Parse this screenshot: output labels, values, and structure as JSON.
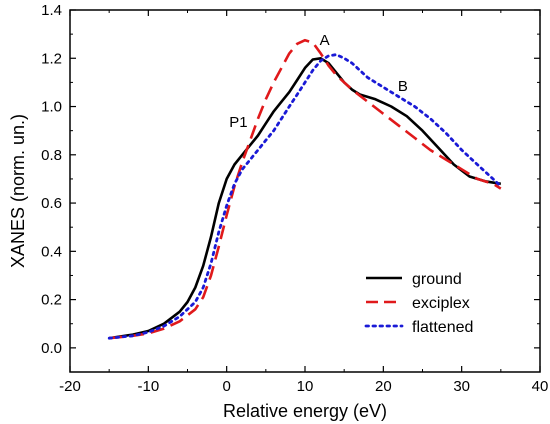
{
  "chart_data": {
    "type": "line",
    "xlabel": "Relative energy (eV)",
    "ylabel": "XANES (norm. un.)",
    "xlim": [
      -20,
      40
    ],
    "ylim": [
      -0.1,
      1.4
    ],
    "x_ticks": [
      -20,
      -10,
      0,
      10,
      20,
      30,
      40
    ],
    "y_ticks": [
      0.0,
      0.2,
      0.4,
      0.6,
      0.8,
      1.0,
      1.2,
      1.4
    ],
    "x_tick_labels": [
      "-20",
      "-10",
      "0",
      "10",
      "20",
      "30",
      "40"
    ],
    "y_tick_labels": [
      "0.0",
      "0.2",
      "0.4",
      "0.6",
      "0.8",
      "1.0",
      "1.2",
      "1.4"
    ],
    "grid": false,
    "legend_position": "bottom-right",
    "annotations": [
      {
        "text": "A",
        "x": 12.5,
        "y": 1.255
      },
      {
        "text": "B",
        "x": 22.5,
        "y": 1.065
      },
      {
        "text": "P1",
        "x": 1.5,
        "y": 0.915
      }
    ],
    "series": [
      {
        "name": "ground",
        "color": "#000000",
        "style": "solid",
        "points": [
          [
            -15,
            0.04
          ],
          [
            -12,
            0.055
          ],
          [
            -10,
            0.07
          ],
          [
            -8,
            0.1
          ],
          [
            -6,
            0.15
          ],
          [
            -5,
            0.19
          ],
          [
            -4,
            0.25
          ],
          [
            -3,
            0.34
          ],
          [
            -2,
            0.46
          ],
          [
            -1,
            0.6
          ],
          [
            0,
            0.7
          ],
          [
            1,
            0.76
          ],
          [
            2,
            0.8
          ],
          [
            3,
            0.84
          ],
          [
            4,
            0.88
          ],
          [
            5,
            0.93
          ],
          [
            6,
            0.98
          ],
          [
            7,
            1.02
          ],
          [
            8,
            1.06
          ],
          [
            9,
            1.11
          ],
          [
            10,
            1.16
          ],
          [
            11,
            1.195
          ],
          [
            12,
            1.2
          ],
          [
            13,
            1.18
          ],
          [
            14,
            1.14
          ],
          [
            15,
            1.1
          ],
          [
            16,
            1.07
          ],
          [
            17,
            1.05
          ],
          [
            19,
            1.03
          ],
          [
            21,
            1.0
          ],
          [
            23,
            0.96
          ],
          [
            25,
            0.9
          ],
          [
            27,
            0.83
          ],
          [
            29,
            0.76
          ],
          [
            31,
            0.71
          ],
          [
            33,
            0.69
          ],
          [
            35,
            0.68
          ]
        ]
      },
      {
        "name": "exciplex",
        "color": "#e0191b",
        "style": "dashed",
        "points": [
          [
            -15,
            0.04
          ],
          [
            -12,
            0.05
          ],
          [
            -10,
            0.06
          ],
          [
            -8,
            0.08
          ],
          [
            -6,
            0.11
          ],
          [
            -4,
            0.16
          ],
          [
            -3,
            0.21
          ],
          [
            -2,
            0.3
          ],
          [
            -1,
            0.42
          ],
          [
            0,
            0.55
          ],
          [
            1,
            0.67
          ],
          [
            2,
            0.77
          ],
          [
            3,
            0.86
          ],
          [
            4,
            0.95
          ],
          [
            5,
            1.03
          ],
          [
            6,
            1.1
          ],
          [
            7,
            1.16
          ],
          [
            8,
            1.22
          ],
          [
            9,
            1.26
          ],
          [
            10,
            1.275
          ],
          [
            11,
            1.265
          ],
          [
            12,
            1.22
          ],
          [
            13,
            1.17
          ],
          [
            14,
            1.13
          ],
          [
            15,
            1.1
          ],
          [
            16,
            1.07
          ],
          [
            18,
            1.02
          ],
          [
            20,
            0.97
          ],
          [
            22,
            0.92
          ],
          [
            24,
            0.87
          ],
          [
            26,
            0.82
          ],
          [
            28,
            0.78
          ],
          [
            30,
            0.74
          ],
          [
            32,
            0.7
          ],
          [
            34,
            0.68
          ],
          [
            35,
            0.66
          ]
        ]
      },
      {
        "name": "flattened",
        "color": "#1a1ad6",
        "style": "dotted",
        "points": [
          [
            -15,
            0.04
          ],
          [
            -12,
            0.05
          ],
          [
            -10,
            0.065
          ],
          [
            -8,
            0.09
          ],
          [
            -6,
            0.13
          ],
          [
            -4,
            0.19
          ],
          [
            -3,
            0.25
          ],
          [
            -2,
            0.35
          ],
          [
            -1,
            0.48
          ],
          [
            0,
            0.59
          ],
          [
            1,
            0.68
          ],
          [
            2,
            0.74
          ],
          [
            3,
            0.78
          ],
          [
            4,
            0.82
          ],
          [
            5,
            0.86
          ],
          [
            6,
            0.9
          ],
          [
            7,
            0.95
          ],
          [
            8,
            1.0
          ],
          [
            9,
            1.05
          ],
          [
            10,
            1.1
          ],
          [
            11,
            1.15
          ],
          [
            12,
            1.19
          ],
          [
            13,
            1.21
          ],
          [
            14,
            1.215
          ],
          [
            15,
            1.2
          ],
          [
            16,
            1.18
          ],
          [
            17,
            1.15
          ],
          [
            18,
            1.12
          ],
          [
            19,
            1.1
          ],
          [
            20,
            1.08
          ],
          [
            22,
            1.04
          ],
          [
            24,
            1.0
          ],
          [
            26,
            0.95
          ],
          [
            28,
            0.89
          ],
          [
            30,
            0.82
          ],
          [
            32,
            0.76
          ],
          [
            34,
            0.7
          ],
          [
            35,
            0.67
          ]
        ]
      }
    ]
  }
}
